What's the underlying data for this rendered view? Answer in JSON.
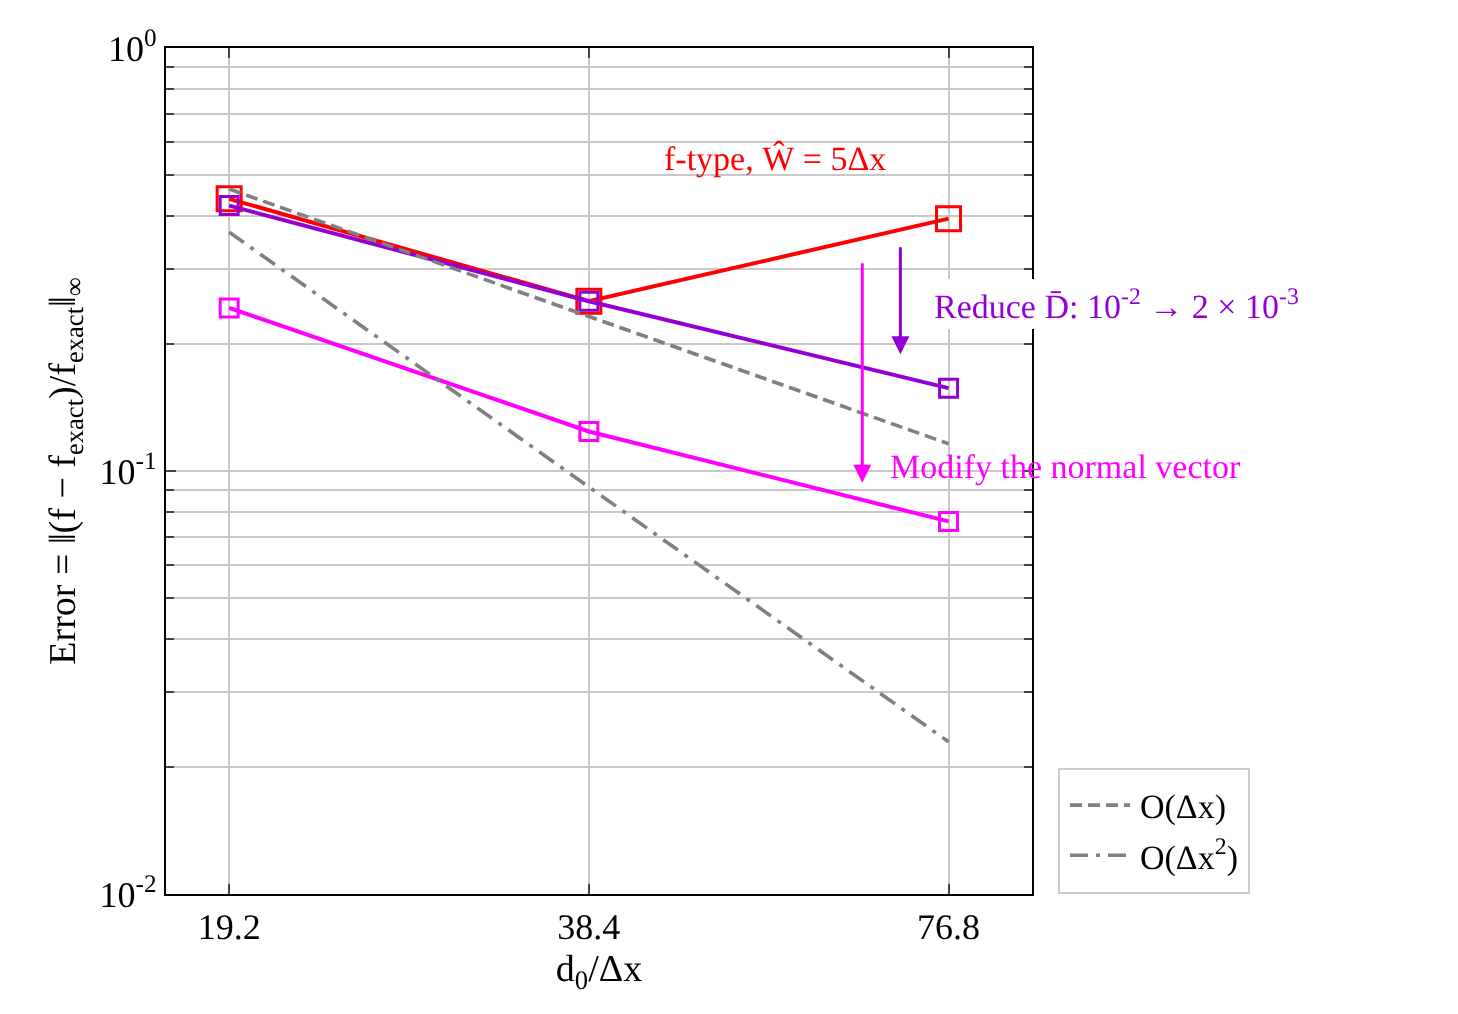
{
  "chart_data": {
    "type": "line",
    "xlabel": "d$_{0}$/Δx",
    "ylabel": "Error = ‖(f − f$_{exact}$)/f$_{exact}$‖$_{∞}$",
    "x": [
      19.2,
      38.4,
      76.8
    ],
    "series": [
      {
        "color": "#ff0000",
        "values": [
          0.44,
          0.252,
          0.395
        ],
        "marker": "square"
      },
      {
        "color": "#9400d3",
        "values": [
          0.424,
          0.252,
          0.157
        ],
        "marker": "square"
      },
      {
        "color": "#ff00ff",
        "values": [
          0.243,
          0.124,
          0.076
        ],
        "marker": "square"
      },
      {
        "name": "O(Δx)",
        "color": "#808080",
        "values": [
          0.464,
          null,
          0.116
        ],
        "marker": "none",
        "line_style": "dashed"
      },
      {
        "name": "O(Δx$^{2}$)",
        "color": "#808080",
        "values": [
          0.367,
          null,
          0.0229
        ],
        "marker": "none",
        "line_style": "dashdot"
      }
    ],
    "annotations": [
      "f-type, Ŵ = 5Δx",
      "Reduce D̄: 10$^{-2}$ → 2 × 10$^{-3}$",
      "Modify the normal vector"
    ],
    "xlim": [
      17.0,
      90.2
    ],
    "ylim": [
      0.01,
      1
    ],
    "xticks": [
      19.2,
      38.4,
      76.8
    ],
    "yticks": [
      {
        "value": 0.01,
        "label": "10$^{-2}$"
      },
      {
        "value": 0.1,
        "label": "10$^{-1}$"
      },
      {
        "value": 1,
        "label": "10$^{0}$"
      }
    ],
    "log": "xy",
    "grid": true,
    "legend": "bottom right"
  }
}
